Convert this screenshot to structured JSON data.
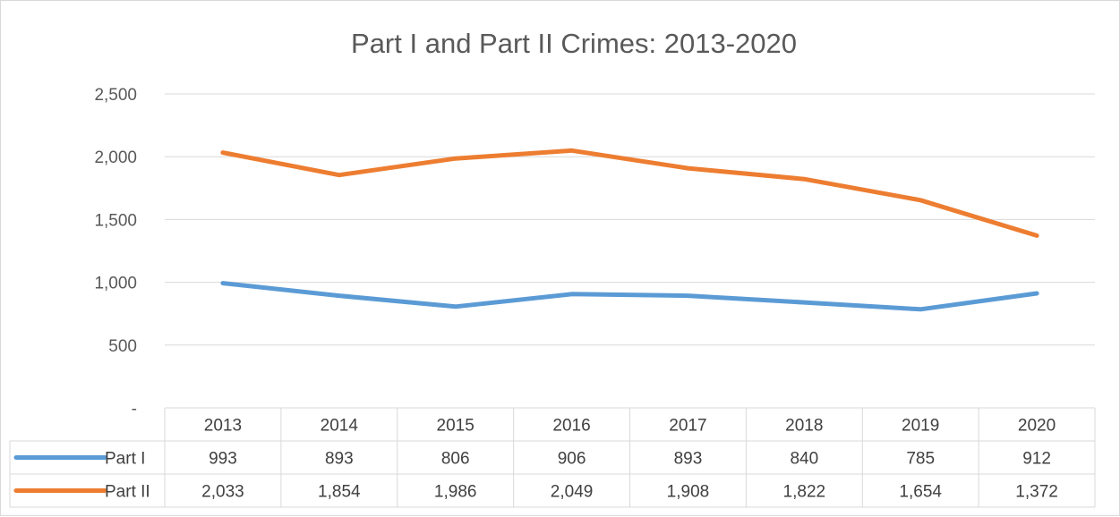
{
  "chart_data": {
    "type": "line",
    "title": "Part I and Part II Crimes: 2013-2020",
    "categories": [
      "2013",
      "2014",
      "2015",
      "2016",
      "2017",
      "2018",
      "2019",
      "2020"
    ],
    "ylim": [
      0,
      2500
    ],
    "yticks": [
      0,
      500,
      1000,
      1500,
      2000,
      2500
    ],
    "ytick_labels": [
      "-",
      "500",
      "1,000",
      "1,500",
      "2,000",
      "2,500"
    ],
    "grid": true,
    "legend": "data-table",
    "series": [
      {
        "name": "Part I",
        "color": "#5b9bd5",
        "values": [
          993,
          893,
          806,
          906,
          893,
          840,
          785,
          912
        ],
        "labels": [
          "993",
          "893",
          "806",
          "906",
          "893",
          "840",
          "785",
          "912"
        ]
      },
      {
        "name": "Part II",
        "color": "#ed7d31",
        "values": [
          2033,
          1854,
          1986,
          2049,
          1908,
          1822,
          1654,
          1372
        ],
        "labels": [
          "2,033",
          "1,854",
          "1,986",
          "2,049",
          "1,908",
          "1,822",
          "1,654",
          "1,372"
        ]
      }
    ]
  }
}
